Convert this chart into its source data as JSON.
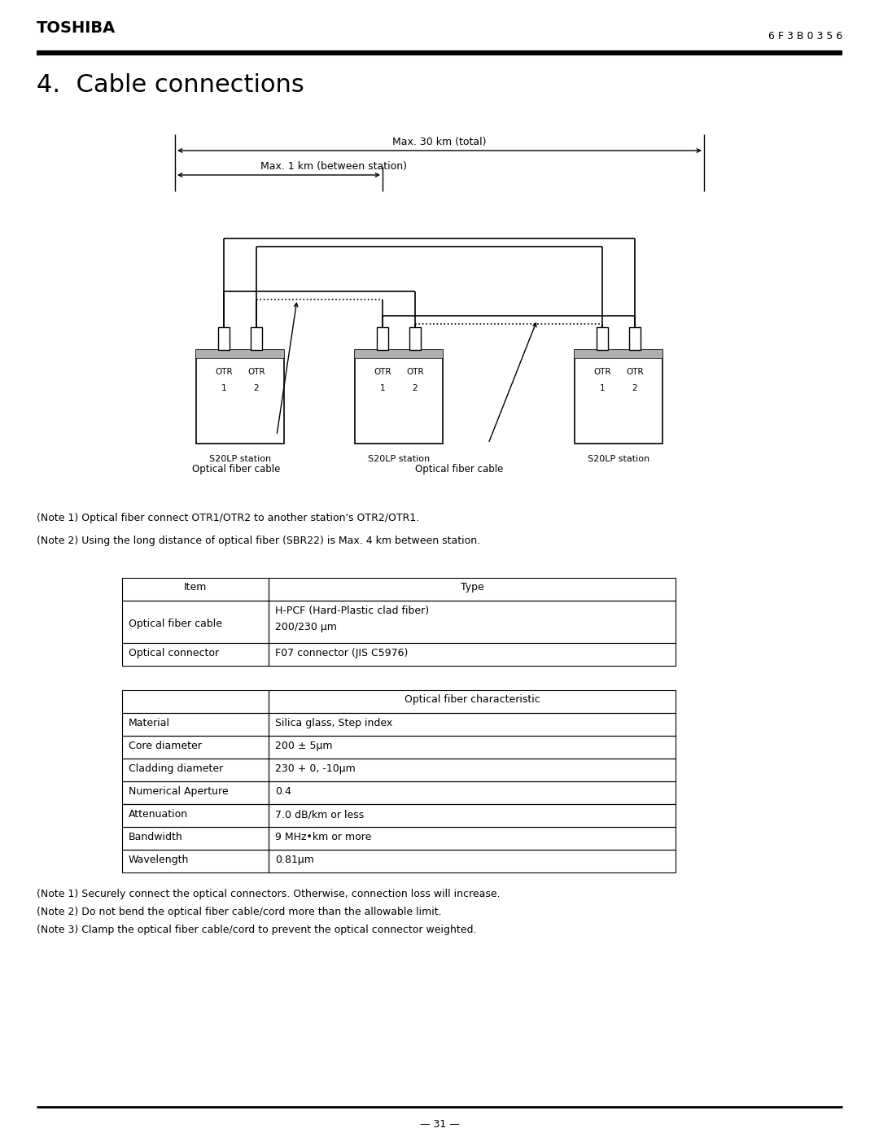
{
  "title": "4.  Cable connections",
  "header_title": "TOSHIBA",
  "header_code": "6 F 3 B 0 3 5 6",
  "page_number": "— 31 —",
  "arrow_label1": "Max. 30 km (total)",
  "arrow_label2": "Max. 1 km (between station)",
  "station_label": "S20LP station",
  "cable_label": "Optical fiber cable",
  "note1_diagram": "(Note 1) Optical fiber connect OTR1/OTR2 to another station's OTR2/OTR1.",
  "note2_diagram": "(Note 2) Using the long distance of optical fiber (SBR22) is Max. 4 km between station.",
  "table1_headers": [
    "Item",
    "Type"
  ],
  "table1_row1_col1": "Optical fiber cable",
  "table1_row1_col2a": "H-PCF (Hard-Plastic clad fiber)",
  "table1_row1_col2b": "200/230 μm",
  "table1_row2_col1": "Optical connector",
  "table1_row2_col2": "F07 connector (JIS C5976)",
  "table2_header_val": "Optical fiber characteristic",
  "table2_rows": [
    [
      "Material",
      "Silica glass, Step index"
    ],
    [
      "Core diameter",
      "200 ± 5μm"
    ],
    [
      "Cladding diameter",
      "230 + 0, -10μm"
    ],
    [
      "Numerical Aperture",
      "0.4"
    ],
    [
      "Attenuation",
      "7.0 dB/km or less"
    ],
    [
      "Bandwidth",
      "9 MHz•km or more"
    ],
    [
      "Wavelength",
      "0.81μm"
    ]
  ],
  "note1_bottom": "(Note 1) Securely connect the optical connectors. Otherwise, connection loss will increase.",
  "note2_bottom": "(Note 2) Do not bend the optical fiber cable/cord more than the allowable limit.",
  "note3_bottom": "(Note 3) Clamp the optical fiber cable/cord to prevent the optical connector weighted.",
  "bg_color": "#ffffff"
}
